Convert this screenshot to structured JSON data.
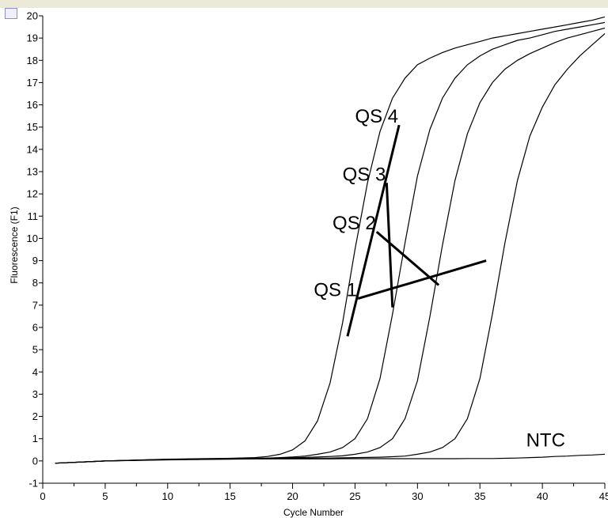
{
  "chart_data": {
    "type": "line",
    "xlabel": "Cycle Number",
    "ylabel": "Fluorescence (F1)",
    "xlim": [
      0,
      45
    ],
    "ylim": [
      -1,
      20
    ],
    "x_ticks": [
      0,
      5,
      10,
      15,
      20,
      25,
      30,
      35,
      40,
      45
    ],
    "y_ticks": [
      -1,
      0,
      1,
      2,
      3,
      4,
      5,
      6,
      7,
      8,
      9,
      10,
      11,
      12,
      13,
      14,
      15,
      16,
      17,
      18,
      19,
      20
    ],
    "grid": false,
    "legend": "none",
    "x": [
      1,
      5,
      10,
      15,
      17,
      18,
      19,
      20,
      21,
      22,
      23,
      24,
      25,
      26,
      27,
      28,
      29,
      30,
      31,
      32,
      33,
      34,
      35,
      36,
      37,
      38,
      39,
      40,
      41,
      42,
      43,
      44,
      45
    ],
    "series": [
      {
        "name": "QS 4",
        "label_at": [
          25,
          15.2
        ],
        "pointer_to": [
          24.4,
          5.6
        ],
        "values": [
          -0.1,
          0.0,
          0.08,
          0.12,
          0.15,
          0.2,
          0.3,
          0.5,
          0.9,
          1.8,
          3.5,
          6.2,
          9.5,
          12.5,
          14.8,
          16.3,
          17.2,
          17.8,
          18.1,
          18.35,
          18.55,
          18.7,
          18.85,
          19.0,
          19.1,
          19.2,
          19.3,
          19.4,
          19.5,
          19.6,
          19.7,
          19.8,
          19.95
        ]
      },
      {
        "name": "QS 3",
        "label_at": [
          24,
          12.6
        ],
        "pointer_to": [
          28,
          6.9
        ],
        "values": [
          -0.1,
          0.0,
          0.07,
          0.1,
          0.12,
          0.13,
          0.15,
          0.18,
          0.22,
          0.3,
          0.4,
          0.6,
          1.0,
          1.9,
          3.7,
          6.6,
          9.8,
          12.8,
          14.9,
          16.3,
          17.2,
          17.8,
          18.2,
          18.5,
          18.7,
          18.9,
          19.0,
          19.15,
          19.3,
          19.4,
          19.5,
          19.6,
          19.7
        ]
      },
      {
        "name": "QS 2",
        "label_at": [
          23.2,
          10.4
        ],
        "pointer_to": [
          31.7,
          7.9
        ],
        "values": [
          -0.1,
          0.0,
          0.07,
          0.1,
          0.11,
          0.12,
          0.13,
          0.14,
          0.16,
          0.18,
          0.2,
          0.23,
          0.3,
          0.4,
          0.6,
          1.0,
          1.9,
          3.6,
          6.5,
          9.7,
          12.6,
          14.7,
          16.1,
          17.0,
          17.6,
          18.0,
          18.3,
          18.55,
          18.8,
          19.0,
          19.15,
          19.3,
          19.45
        ]
      },
      {
        "name": "QS 1",
        "label_at": [
          21.7,
          7.4
        ],
        "pointer_to": [
          35.5,
          9
        ],
        "values": [
          -0.1,
          0.0,
          0.06,
          0.09,
          0.1,
          0.1,
          0.11,
          0.12,
          0.12,
          0.13,
          0.13,
          0.14,
          0.15,
          0.16,
          0.17,
          0.19,
          0.22,
          0.3,
          0.4,
          0.6,
          1.0,
          1.9,
          3.7,
          6.6,
          9.8,
          12.6,
          14.6,
          15.9,
          16.9,
          17.6,
          18.2,
          18.7,
          19.2
        ]
      },
      {
        "name": "NTC",
        "label_at": [
          38.7,
          0.65
        ],
        "pointer_to": null,
        "values": [
          -0.1,
          0.0,
          0.05,
          0.08,
          0.09,
          0.09,
          0.09,
          0.09,
          0.09,
          0.09,
          0.09,
          0.1,
          0.1,
          0.1,
          0.1,
          0.1,
          0.1,
          0.1,
          0.1,
          0.1,
          0.1,
          0.11,
          0.11,
          0.11,
          0.12,
          0.13,
          0.15,
          0.17,
          0.2,
          0.22,
          0.25,
          0.27,
          0.3
        ]
      }
    ],
    "colors": {
      "line": "#000000",
      "axis": "#000000",
      "background": "#ffffff",
      "top_bar": "#ece9d8"
    }
  }
}
